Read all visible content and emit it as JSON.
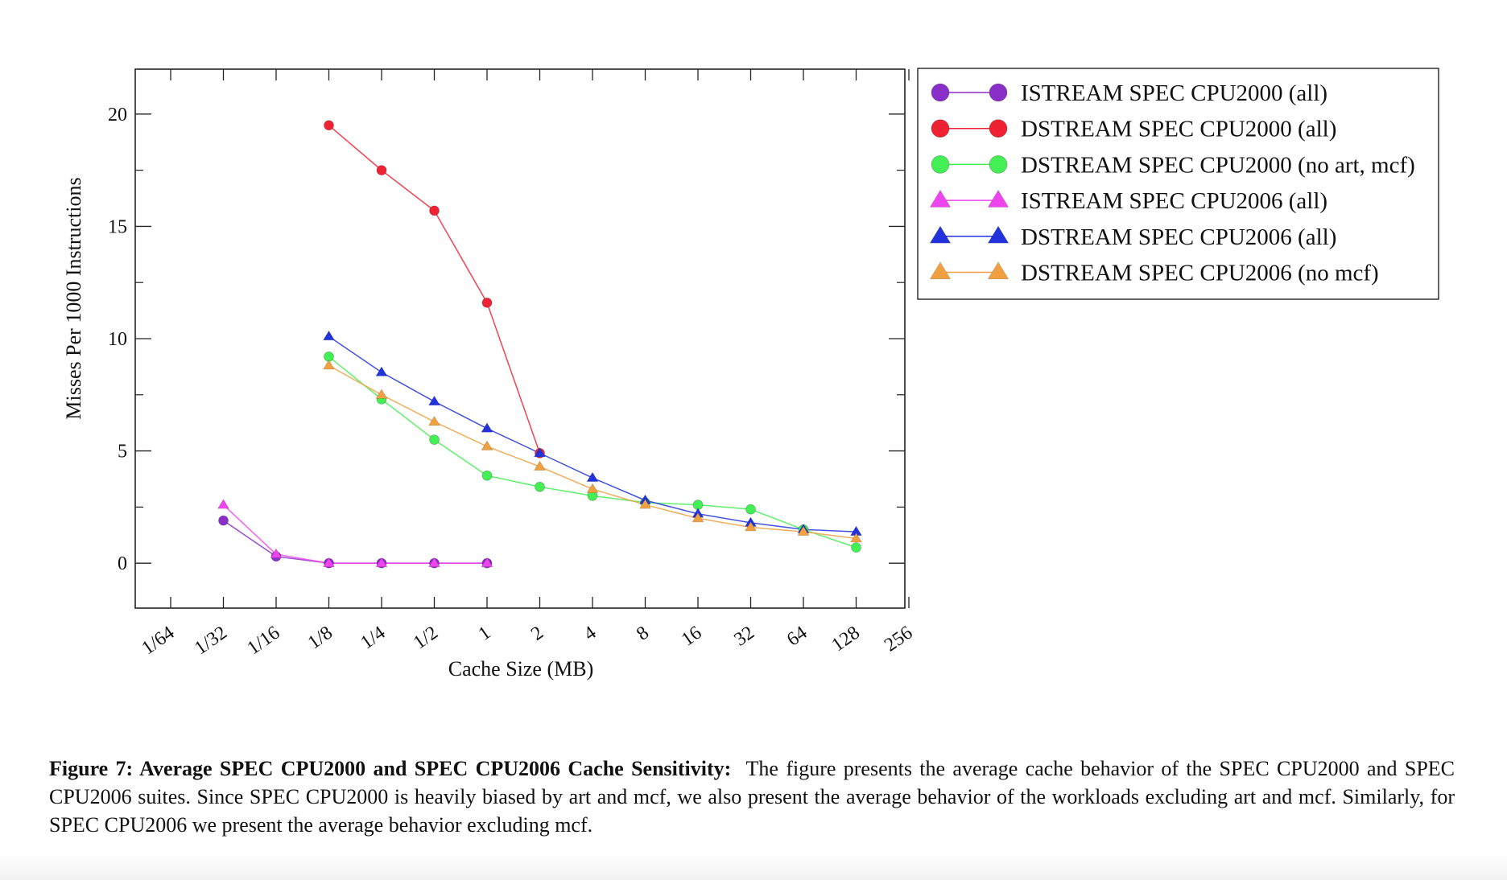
{
  "chart_data": {
    "type": "line",
    "xlabel": "Cache Size (MB)",
    "ylabel": "Misses Per 1000 Instructions",
    "x_categories": [
      "1/64",
      "1/32",
      "1/16",
      "1/8",
      "1/4",
      "1/2",
      "1",
      "2",
      "4",
      "8",
      "16",
      "32",
      "64",
      "128",
      "256"
    ],
    "y_ticks": [
      "0",
      "5",
      "10",
      "15",
      "20"
    ],
    "ylim": [
      -2,
      22
    ],
    "grid": false,
    "legend_position": "right, outside plot",
    "series": [
      {
        "name": "ISTREAM SPEC CPU2000 (all)",
        "color": "#8b2fc9",
        "marker": "circle",
        "x": [
          "1/32",
          "1/16",
          "1/8",
          "1/4",
          "1/2",
          "1"
        ],
        "values": [
          1.9,
          0.3,
          0.0,
          0.0,
          0.0,
          0.0
        ]
      },
      {
        "name": "DSTREAM SPEC CPU2000 (all)",
        "color": "#ee2233",
        "marker": "circle",
        "x": [
          "1/8",
          "1/4",
          "1/2",
          "1",
          "2"
        ],
        "values": [
          19.5,
          17.5,
          15.7,
          11.6,
          4.9
        ]
      },
      {
        "name": "DSTREAM SPEC CPU2000 (no art, mcf)",
        "color": "#44ee55",
        "marker": "circle",
        "x": [
          "1/8",
          "1/4",
          "1/2",
          "1",
          "2",
          "4",
          "8",
          "16",
          "32",
          "64",
          "128"
        ],
        "values": [
          9.2,
          7.3,
          5.5,
          3.9,
          3.4,
          3.0,
          2.7,
          2.6,
          2.4,
          1.5,
          0.7
        ]
      },
      {
        "name": "ISTREAM SPEC CPU2006 (all)",
        "color": "#ee44ee",
        "marker": "triangle",
        "x": [
          "1/32",
          "1/16",
          "1/8",
          "1/4",
          "1/2",
          "1"
        ],
        "values": [
          2.6,
          0.4,
          0.0,
          0.0,
          0.0,
          0.0
        ]
      },
      {
        "name": "DSTREAM SPEC CPU2006 (all)",
        "color": "#2233dd",
        "marker": "triangle",
        "x": [
          "1/8",
          "1/4",
          "1/2",
          "1",
          "2",
          "4",
          "8",
          "16",
          "32",
          "64",
          "128"
        ],
        "values": [
          10.1,
          8.5,
          7.2,
          6.0,
          4.9,
          3.8,
          2.8,
          2.2,
          1.8,
          1.5,
          1.4
        ]
      },
      {
        "name": "DSTREAM SPEC CPU2006 (no mcf)",
        "color": "#f0a040",
        "marker": "triangle",
        "x": [
          "1/8",
          "1/4",
          "1/2",
          "1",
          "2",
          "4",
          "8",
          "16",
          "32",
          "64",
          "128"
        ],
        "values": [
          8.8,
          7.5,
          6.3,
          5.2,
          4.3,
          3.3,
          2.6,
          2.0,
          1.6,
          1.4,
          1.1
        ]
      }
    ]
  },
  "caption": {
    "label": "Figure 7: Average SPEC CPU2000 and SPEC CPU2006 Cache Sensitivity:",
    "text": "The figure presents the average cache behavior of the SPEC CPU2000 and SPEC CPU2006 suites. Since SPEC CPU2000 is heavily biased by art and mcf, we also present the average behavior of the workloads excluding art and mcf. Similarly, for SPEC CPU2006 we present the average behavior excluding mcf."
  }
}
